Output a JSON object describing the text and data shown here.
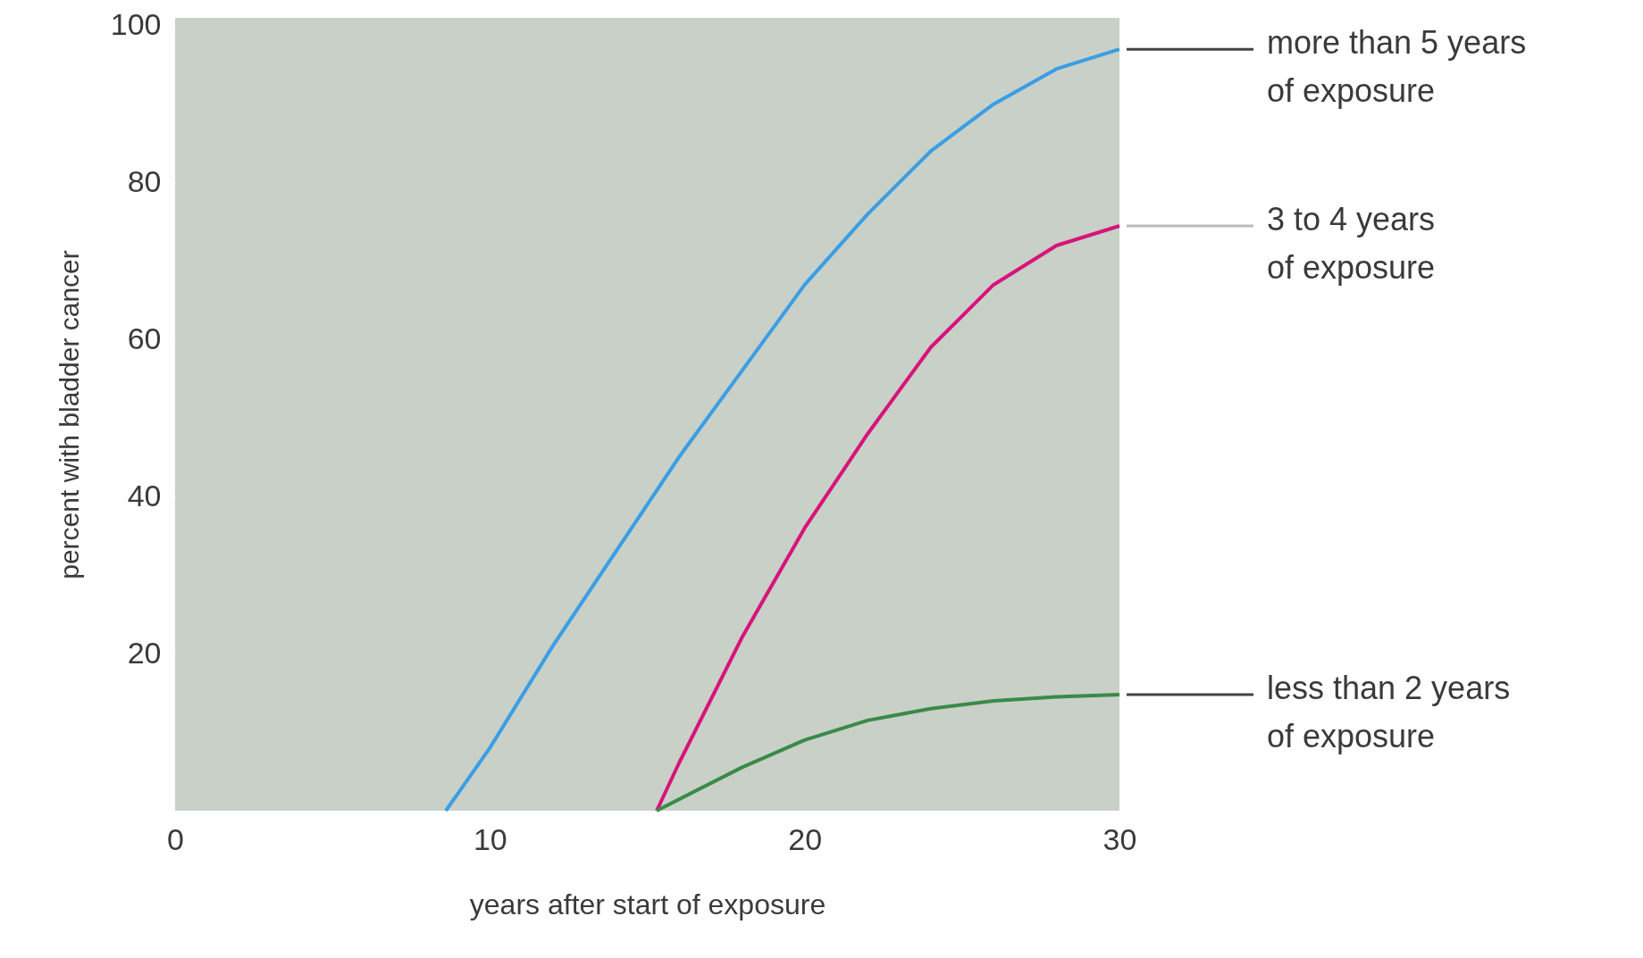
{
  "chart_data": {
    "type": "line",
    "xlabel": "years after start of exposure",
    "ylabel": "percent with bladder cancer",
    "xlim": [
      0,
      30
    ],
    "xticks": [
      0,
      10,
      20,
      30
    ],
    "ylim": [
      0,
      101
    ],
    "yticks": [
      20,
      40,
      60,
      80,
      100
    ],
    "grid": false,
    "marker": "none",
    "line_style": "solid",
    "series": [
      {
        "name": "more than 5 years of exposure",
        "color": "#3a9ee4",
        "x": [
          8.6,
          10,
          12,
          14,
          16,
          18,
          20,
          22,
          24,
          26,
          28,
          30
        ],
        "values": [
          0,
          8,
          21,
          33,
          45,
          56,
          67,
          76,
          84,
          90,
          94.5,
          97
        ]
      },
      {
        "name": "3 to 4 years of exposure",
        "color": "#d8137a",
        "x": [
          15.3,
          16,
          18,
          20,
          22,
          24,
          26,
          28,
          30
        ],
        "values": [
          0,
          6,
          22,
          36,
          48,
          59,
          67,
          72,
          74.5
        ]
      },
      {
        "name": "less than 2 years of exposure",
        "color": "#3a8a48",
        "x": [
          15.3,
          18,
          20,
          22,
          24,
          26,
          28,
          30
        ],
        "values": [
          0,
          5.5,
          9,
          11.5,
          13,
          14,
          14.5,
          14.8
        ]
      }
    ]
  }
}
